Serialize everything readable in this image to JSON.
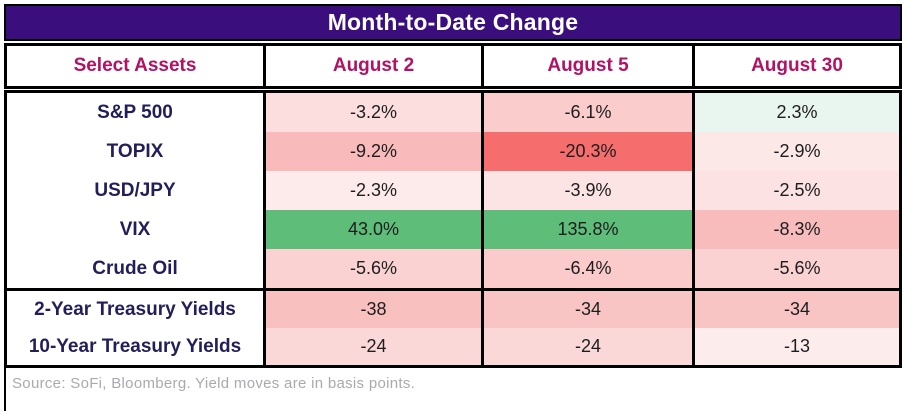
{
  "title": "Month-to-Date Change",
  "colors": {
    "title_bg": "#3a0e7d",
    "title_text": "#ffffff",
    "header_text": "#b11263",
    "asset_text": "#221e5a",
    "value_text": "#1d1d1f",
    "border": "#000000",
    "source_text": "#a9a9b2",
    "positive_green": "#5dbd79",
    "strong_red": "#f66d6d"
  },
  "table": {
    "columns": [
      "Select Assets",
      "August 2",
      "August 5",
      "August 30"
    ],
    "rows": [
      {
        "asset": "S&P 500",
        "section": "percent",
        "display": [
          "-3.2%",
          "-6.1%",
          "2.3%"
        ],
        "colors": [
          "#fcdede",
          "#fbcccc",
          "#e9f5ef"
        ]
      },
      {
        "asset": "TOPIX",
        "section": "percent",
        "display": [
          "-9.2%",
          "-20.3%",
          "-2.9%"
        ],
        "colors": [
          "#f8baba",
          "#f66d6d",
          "#fde8e8"
        ]
      },
      {
        "asset": "USD/JPY",
        "section": "percent",
        "display": [
          "-2.3%",
          "-3.9%",
          "-2.5%"
        ],
        "colors": [
          "#fdeaea",
          "#fce4e4",
          "#fce2e2"
        ]
      },
      {
        "asset": "VIX",
        "section": "percent",
        "display": [
          "43.0%",
          "135.8%",
          "-8.3%"
        ],
        "colors": [
          "#5dbd79",
          "#5dbd79",
          "#f8bcbc"
        ]
      },
      {
        "asset": "Crude Oil",
        "section": "percent",
        "display": [
          "-5.6%",
          "-6.4%",
          "-5.6%"
        ],
        "colors": [
          "#fbd2d2",
          "#fbcaca",
          "#fbd2d2"
        ]
      },
      {
        "asset": "2-Year Treasury Yields",
        "section": "yields",
        "display": [
          "-38",
          "-34",
          "-34"
        ],
        "colors": [
          "#f9c0c0",
          "#f9c4c4",
          "#f9c4c4"
        ]
      },
      {
        "asset": "10-Year Treasury Yields",
        "section": "yields",
        "display": [
          "-24",
          "-24",
          "-13"
        ],
        "colors": [
          "#fbd8d8",
          "#fbd8d8",
          "#fdecec"
        ]
      }
    ]
  },
  "source_note": "Source: SoFi, Bloomberg. Yield moves are in basis points.",
  "chart_data": {
    "type": "table",
    "title": "Month-to-Date Change",
    "columns": [
      "Select Assets",
      "August 2",
      "August 5",
      "August 30"
    ],
    "rows": [
      {
        "asset": "S&P 500",
        "values": [
          -3.2,
          -6.1,
          2.3
        ],
        "unit": "%"
      },
      {
        "asset": "TOPIX",
        "values": [
          -9.2,
          -20.3,
          -2.9
        ],
        "unit": "%"
      },
      {
        "asset": "USD/JPY",
        "values": [
          -2.3,
          -3.9,
          -2.5
        ],
        "unit": "%"
      },
      {
        "asset": "VIX",
        "values": [
          43.0,
          135.8,
          -8.3
        ],
        "unit": "%"
      },
      {
        "asset": "Crude Oil",
        "values": [
          -5.6,
          -6.4,
          -5.6
        ],
        "unit": "%"
      },
      {
        "asset": "2-Year Treasury Yields",
        "values": [
          -38,
          -34,
          -34
        ],
        "unit": "basis points"
      },
      {
        "asset": "10-Year Treasury Yields",
        "values": [
          -24,
          -24,
          -13
        ],
        "unit": "basis points"
      }
    ],
    "layout_hints": {
      "heatmap": "red shades for negative moves (darker = larger decline), green for large positive moves, mint for small positive",
      "note": "Source: SoFi, Bloomberg. Yield moves are in basis points."
    }
  }
}
